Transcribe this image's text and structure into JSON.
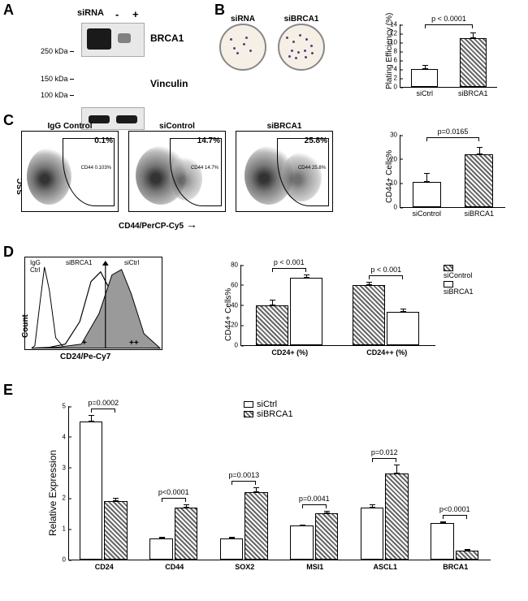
{
  "A": {
    "label": "A",
    "siRNA_header": "siRNA",
    "minus": "-",
    "plus": "+",
    "targets": [
      "BRCA1",
      "Vinculin"
    ],
    "mw_markers": [
      "250 kDa",
      "150 kDa",
      "100 kDa"
    ]
  },
  "B": {
    "label": "B",
    "dish_labels": [
      "siRNA",
      "siBRCA1"
    ],
    "chart": {
      "type": "bar",
      "ylabel": "Plating Efficiency (%)",
      "ylim": [
        0,
        14
      ],
      "ytick_step": 2,
      "categories": [
        "siCtrl",
        "siBRCA1"
      ],
      "values": [
        4.0,
        11.0
      ],
      "errors": [
        1.0,
        1.2
      ],
      "fills": [
        "solid-white",
        "hatched"
      ],
      "p_text": "p < 0.0001",
      "bar_width": 0.6,
      "colors": {
        "bg": "#ffffff",
        "axis": "#000000"
      }
    }
  },
  "C": {
    "label": "C",
    "facs_titles": [
      "IgG Control",
      "siControl",
      "siBRCA1"
    ],
    "facs_pcts": [
      "0.1%",
      "14.7%",
      "25.8%"
    ],
    "facs_gate_labels": [
      "CD44 0.103%",
      "CD44 14.7%",
      "CD44 25.8%"
    ],
    "ssc_label": "SSC",
    "xaxis_label": "CD44/PerCP-Cy5",
    "chart": {
      "type": "bar",
      "ylabel": "CD44+ Cells%",
      "ylim": [
        0,
        30
      ],
      "ytick_step": 10,
      "categories": [
        "siControl",
        "siBRCA1"
      ],
      "values": [
        10.5,
        22.0
      ],
      "errors": [
        3.5,
        3.0
      ],
      "fills": [
        "solid-white",
        "hatched"
      ],
      "p_text": "p=0.0165"
    }
  },
  "D": {
    "label": "D",
    "histo_labels": {
      "igG": "IgG\nCtrl",
      "siBRCA1": "siBRCA1",
      "siCtrl": "siCtrl",
      "count": "Count",
      "xaxis": "CD24/Pe-Cy7",
      "plus": "+",
      "plusplus": "++"
    },
    "chart": {
      "type": "grouped-bar",
      "ylabel": "CD44+ Cells%",
      "ylim": [
        0,
        80
      ],
      "ytick_step": 20,
      "groups": [
        "CD24+ (%)",
        "CD24++ (%)"
      ],
      "series": [
        {
          "name": "siControl",
          "fill": "hatched",
          "values": [
            40,
            60
          ],
          "errors": [
            5,
            3
          ]
        },
        {
          "name": "siBRCA1",
          "fill": "solid-white",
          "values": [
            67,
            33
          ],
          "errors": [
            3,
            3
          ]
        }
      ],
      "p_texts": [
        "p < 0.001",
        "p < 0.001"
      ],
      "legend": [
        "siControl",
        "siBRCA1"
      ]
    }
  },
  "E": {
    "label": "E",
    "chart": {
      "type": "grouped-bar",
      "ylabel": "Relative Expression",
      "ylim": [
        0,
        5
      ],
      "ytick_step": 1,
      "genes": [
        "CD24",
        "CD44",
        "SOX2",
        "MSI1",
        "ASCL1",
        "BRCA1"
      ],
      "series": [
        {
          "name": "siCtrl",
          "fill": "solid-white",
          "values": [
            4.5,
            0.7,
            0.7,
            1.1,
            1.7,
            1.2
          ],
          "errors": [
            0.2,
            0.05,
            0.05,
            0.05,
            0.1,
            0.05
          ]
        },
        {
          "name": "siBRCA1",
          "fill": "hatched",
          "values": [
            1.9,
            1.7,
            2.2,
            1.5,
            2.8,
            0.3
          ],
          "errors": [
            0.1,
            0.1,
            0.15,
            0.1,
            0.3,
            0.05
          ]
        }
      ],
      "p_texts": [
        "p=0.0002",
        "p<0.0001",
        "p=0.0013",
        "p=0.0041",
        "p=0.012",
        "p<0.0001"
      ],
      "legend": [
        "siCtrl",
        "siBRCA1"
      ]
    }
  }
}
